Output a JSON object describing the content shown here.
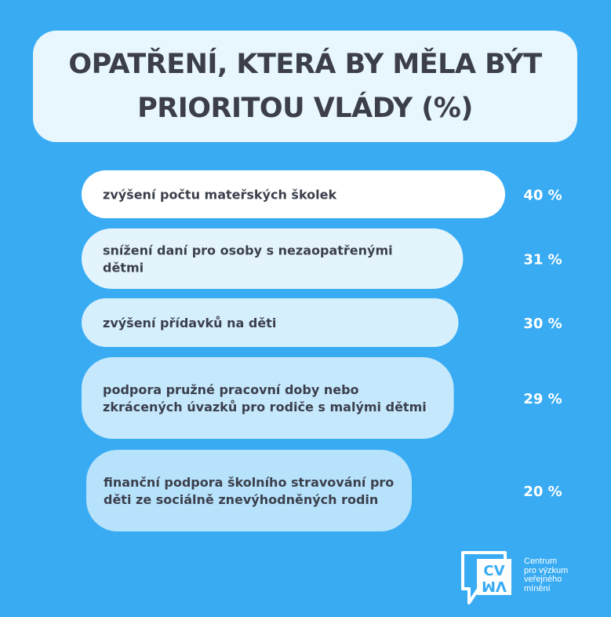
{
  "title": {
    "line1": "OPATŘENÍ, KTERÁ BY MĚLA BÝT",
    "line2": "PRIORITOU VLÁDY (%)"
  },
  "colors": {
    "background": "#38abf3",
    "title_box": "#e8f6fd",
    "bar_shades": [
      "#ffffff",
      "#e3f4fd",
      "#d6effd",
      "#c5e8fc",
      "#b7e2fb"
    ],
    "text_dark": "#3b3f4c",
    "value_text": "#ffffff"
  },
  "chart_data": {
    "type": "bar",
    "orientation": "horizontal",
    "unit": "%",
    "categories": [
      [
        "zvýšení počtu mateřských školek"
      ],
      [
        "snížení daní pro osoby s nezaopatřenými",
        "dětmi"
      ],
      [
        "zvýšení přídavků na děti"
      ],
      [
        "podpora pružné pracovní doby nebo",
        "zkrácených úvazků pro rodiče s malými dětmi"
      ],
      [
        "finanční podpora školního stravování pro",
        "děti ze sociálně znevýhodněných rodin"
      ]
    ],
    "values": [
      40,
      31,
      30,
      29,
      20
    ],
    "value_labels": [
      "40 %",
      "31 %",
      "30 %",
      "29 %",
      "20 %"
    ]
  },
  "logo": {
    "mark_top": "CV",
    "mark_bottom": "VM",
    "text_lines": [
      "Centrum",
      "pro výzkum",
      "veřejného",
      "mínění"
    ]
  }
}
